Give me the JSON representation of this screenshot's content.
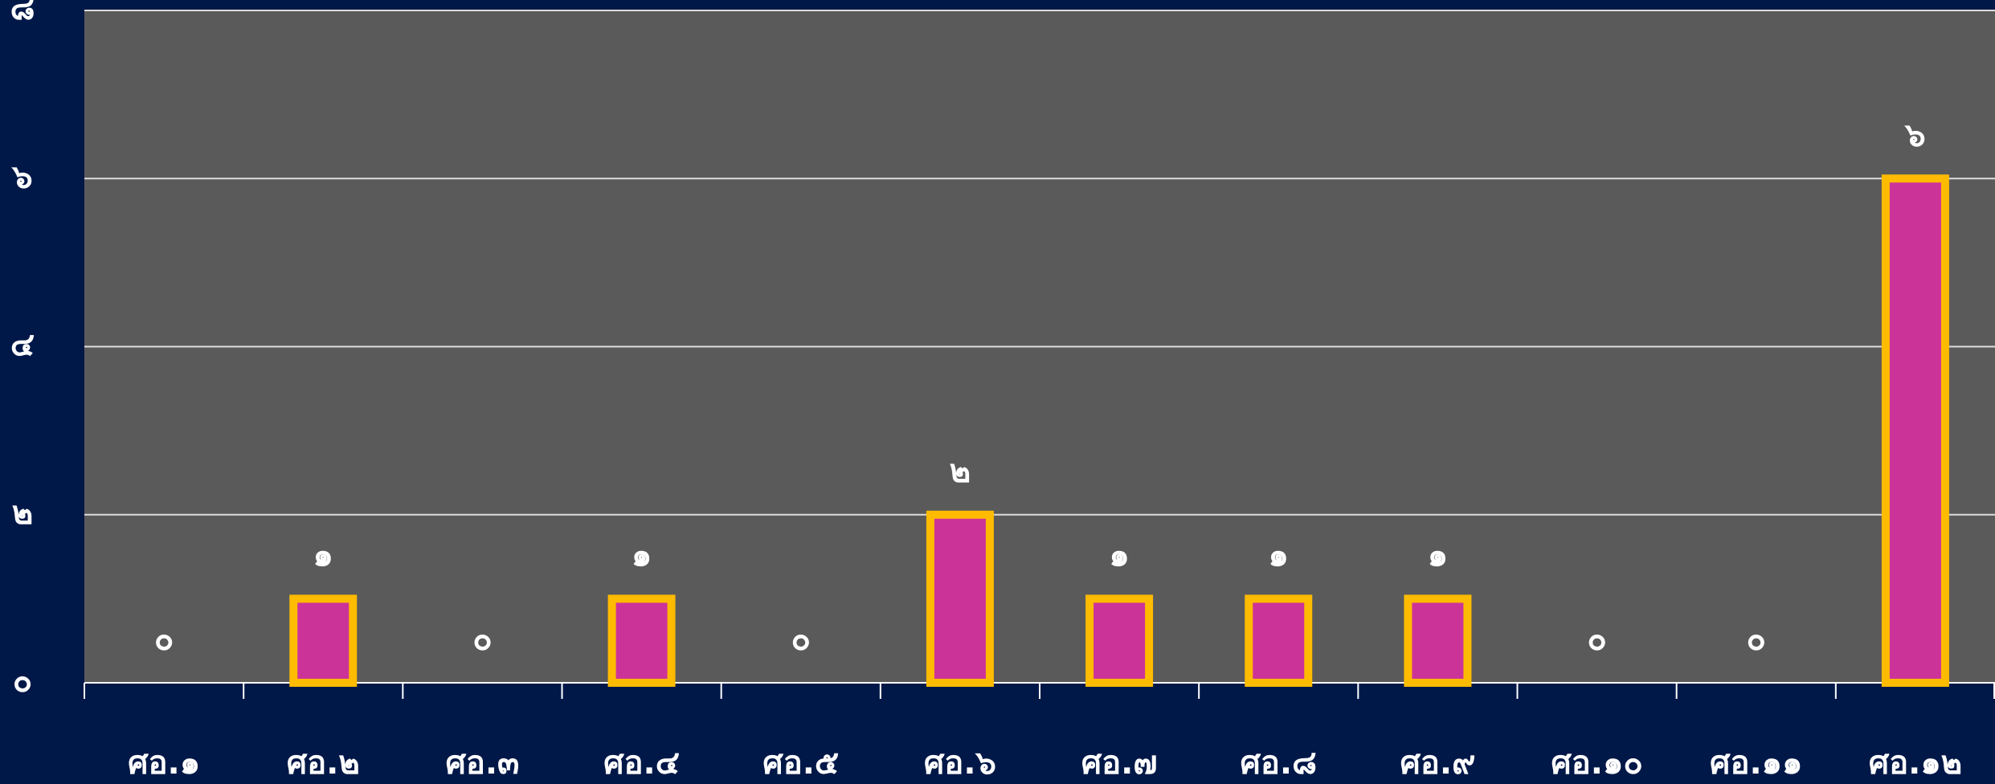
{
  "chart_data": {
    "type": "bar",
    "categories": [
      "ศอ.๑",
      "ศอ.๒",
      "ศอ.๓",
      "ศอ.๔",
      "ศอ.๕",
      "ศอ.๖",
      "ศอ.๗",
      "ศอ.๘",
      "ศอ.๙",
      "ศอ.๑๐",
      "ศอ.๑๑",
      "ศอ.๑๒"
    ],
    "values": [
      0,
      1,
      0,
      1,
      0,
      2,
      1,
      1,
      1,
      0,
      0,
      6
    ],
    "value_labels": [
      "๐",
      "๑",
      "๐",
      "๑",
      "๐",
      "๒",
      "๑",
      "๑",
      "๑",
      "๐",
      "๐",
      "๖"
    ],
    "color": "#cc3399",
    "edge_color": "#ffbb00",
    "ylim": [
      0,
      8
    ],
    "yticks": [
      {
        "value": 0,
        "label": "๐"
      },
      {
        "value": 2,
        "label": "๒"
      },
      {
        "value": 4,
        "label": "๔"
      },
      {
        "value": 6,
        "label": "๖"
      },
      {
        "value": 8,
        "label": "๘"
      }
    ],
    "grid": true
  }
}
